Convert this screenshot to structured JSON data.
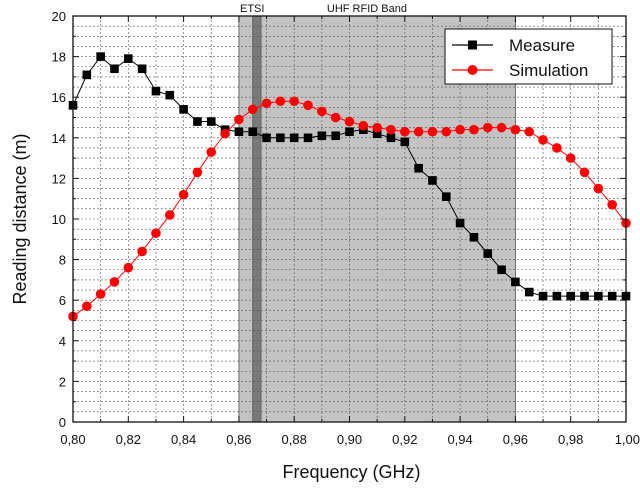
{
  "chart_data": {
    "type": "line",
    "xlabel": "Frequency (GHz)",
    "ylabel": "Reading distance (m)",
    "xlim": [
      0.8,
      1.0
    ],
    "ylim": [
      0,
      20
    ],
    "xticks": [
      "0,80",
      "0,82",
      "0,84",
      "0,86",
      "0,88",
      "0,90",
      "0,92",
      "0,94",
      "0,96",
      "0,98",
      "1,00"
    ],
    "xtick_values": [
      0.8,
      0.82,
      0.84,
      0.86,
      0.88,
      0.9,
      0.92,
      0.94,
      0.96,
      0.98,
      1.0
    ],
    "yticks": [
      "0",
      "2",
      "4",
      "6",
      "8",
      "10",
      "12",
      "14",
      "16",
      "18",
      "20"
    ],
    "ytick_values": [
      0,
      2,
      4,
      6,
      8,
      10,
      12,
      14,
      16,
      18,
      20
    ],
    "grid": true,
    "legend_position": "top-right",
    "bands": [
      {
        "label": "UHF RFID Band",
        "x0": 0.86,
        "x1": 0.96,
        "color": "#c3c3c3"
      },
      {
        "label": "ETSI",
        "x0": 0.865,
        "x1": 0.868,
        "color": "#7a7a7a"
      }
    ],
    "series": [
      {
        "name": "Measure",
        "color": "#000000",
        "marker": "square",
        "x": [
          0.8,
          0.805,
          0.81,
          0.815,
          0.82,
          0.825,
          0.83,
          0.835,
          0.84,
          0.845,
          0.85,
          0.855,
          0.86,
          0.865,
          0.87,
          0.875,
          0.88,
          0.885,
          0.89,
          0.895,
          0.9,
          0.905,
          0.91,
          0.915,
          0.92,
          0.925,
          0.93,
          0.935,
          0.94,
          0.945,
          0.95,
          0.955,
          0.96,
          0.965,
          0.97,
          0.975,
          0.98,
          0.985,
          0.99,
          0.995,
          1.0
        ],
        "y": [
          15.6,
          17.1,
          18.0,
          17.4,
          17.9,
          17.4,
          16.3,
          16.1,
          15.4,
          14.8,
          14.8,
          14.4,
          14.3,
          14.3,
          14.0,
          14.0,
          14.0,
          14.0,
          14.1,
          14.1,
          14.3,
          14.4,
          14.2,
          14.0,
          13.8,
          12.5,
          11.9,
          11.1,
          9.8,
          9.1,
          8.3,
          7.5,
          6.9,
          6.4,
          6.2,
          6.2,
          6.2,
          6.2,
          6.2,
          6.2,
          6.2
        ]
      },
      {
        "name": "Simulation",
        "color": "#ff0000",
        "marker": "circle",
        "x": [
          0.8,
          0.805,
          0.81,
          0.815,
          0.82,
          0.825,
          0.83,
          0.835,
          0.84,
          0.845,
          0.85,
          0.855,
          0.86,
          0.865,
          0.87,
          0.875,
          0.88,
          0.885,
          0.89,
          0.895,
          0.9,
          0.905,
          0.91,
          0.915,
          0.92,
          0.925,
          0.93,
          0.935,
          0.94,
          0.945,
          0.95,
          0.955,
          0.96,
          0.965,
          0.97,
          0.975,
          0.98,
          0.985,
          0.99,
          0.995,
          1.0
        ],
        "y": [
          5.2,
          5.7,
          6.3,
          6.9,
          7.6,
          8.4,
          9.3,
          10.2,
          11.2,
          12.3,
          13.3,
          14.2,
          14.9,
          15.4,
          15.7,
          15.8,
          15.8,
          15.6,
          15.3,
          15.0,
          14.8,
          14.6,
          14.5,
          14.4,
          14.3,
          14.3,
          14.3,
          14.3,
          14.4,
          14.4,
          14.5,
          14.5,
          14.4,
          14.3,
          13.9,
          13.5,
          13.0,
          12.3,
          11.5,
          10.7,
          9.8
        ]
      }
    ]
  }
}
